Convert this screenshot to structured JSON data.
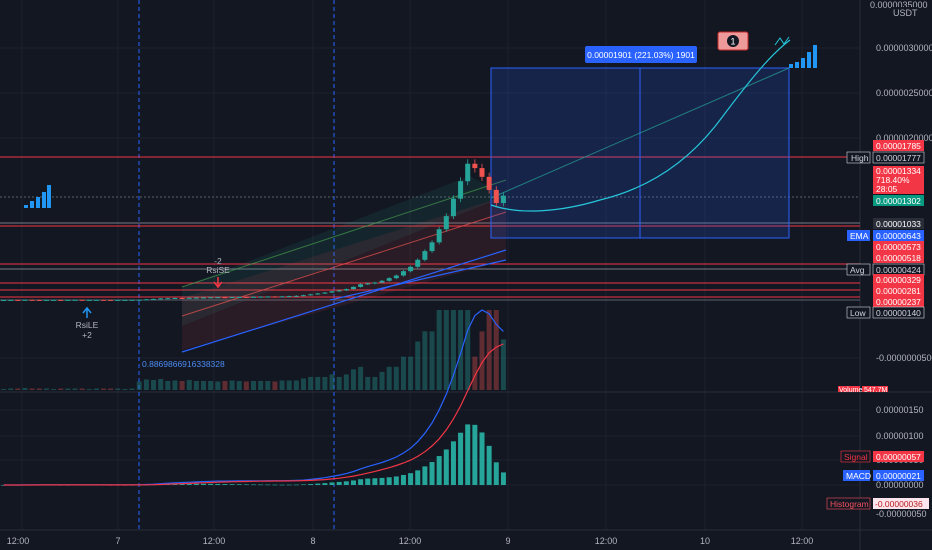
{
  "chart_data": {
    "type": "candlestick",
    "symbol_unit": "USDT",
    "x_ticks": [
      "12:00",
      "7",
      "12:00",
      "8",
      "12:00",
      "9",
      "12:00",
      "10",
      "12:00"
    ],
    "price_ticks": [
      "0.0000035000",
      "0.0000030000",
      "0.0000025000",
      "0.0000020000",
      "-0.0000000500"
    ],
    "price_range": [
      -5e-07,
      3.5e-06
    ],
    "candles_close": [
      1.4e-06,
      1.41e-06,
      1.4e-06,
      1.42e-06,
      1.41e-06,
      1.4e-06,
      1.41e-06,
      1.41e-06,
      1.4e-06,
      1.41e-06,
      1.42e-06,
      1.41e-06,
      1.41e-06,
      1.42e-06,
      1.41e-06,
      1.4e-06,
      1.41e-06,
      1.41e-06,
      1.42e-06,
      1.43e-06,
      1.48e-06,
      1.52e-06,
      1.58e-06,
      1.6e-06,
      1.63e-06,
      1.61e-06,
      1.65e-06,
      1.67e-06,
      1.69e-06,
      1.71e-06,
      1.72e-06,
      1.7e-06,
      1.73e-06,
      1.75e-06,
      1.74e-06,
      1.76e-06,
      1.78e-06,
      1.8e-06,
      1.79e-06,
      1.82e-06,
      1.85e-06,
      1.88e-06,
      1.95e-06,
      2.05e-06,
      2.15e-06,
      2.25e-06,
      2.4e-06,
      2.5e-06,
      2.65e-06,
      2.9e-06,
      3.2e-06,
      3.3e-06,
      3.4e-06,
      3.6e-06,
      3.9e-06,
      4.2e-06,
      4.7e-06,
      5.2e-06,
      6e-06,
      7e-06,
      8e-06,
      9.5e-06,
      1.1e-05,
      1.3e-05,
      1.5e-05,
      1.7e-05,
      1.65e-05,
      1.55e-05,
      1.4e-05,
      1.25e-05,
      1.334e-05
    ],
    "levels": [
      {
        "label": "",
        "value": "0.00001785",
        "color": "#f23645"
      },
      {
        "label": "High",
        "value": "0.00001777",
        "color": "#131722"
      },
      {
        "label": "",
        "value": "0.00001334",
        "color": "#f23645"
      },
      {
        "label": "",
        "value": "718.40%",
        "color": "#f23645"
      },
      {
        "label": "",
        "value": "28:05",
        "color": "#f23645"
      },
      {
        "label": "",
        "value": "0.00001302",
        "color": "#089981"
      },
      {
        "label": "",
        "value": "0.00001033",
        "color": "#2a2e39"
      },
      {
        "label": "EMA",
        "value": "0.00000643",
        "color": "#2962ff"
      },
      {
        "label": "",
        "value": "0.00000573",
        "color": "#f23645"
      },
      {
        "label": "",
        "value": "0.00000518",
        "color": "#f23645"
      },
      {
        "label": "Avg",
        "value": "0.00000424",
        "color": "#2a2e39"
      },
      {
        "label": "",
        "value": "0.00000329",
        "color": "#f23645"
      },
      {
        "label": "",
        "value": "0.00000281",
        "color": "#f23645"
      },
      {
        "label": "",
        "value": "0.00000237",
        "color": "#f23645"
      },
      {
        "label": "Low",
        "value": "0.00000140",
        "color": "#2a2e39"
      }
    ],
    "volume_label": "Volume",
    "volume_value": "547.7M",
    "measure_label": "0.00001901 (221.03%) 1901",
    "fib_label": "0.8869866916338328",
    "signals": [
      {
        "text": "-2",
        "text2": "RsiSE"
      },
      {
        "text": "RsiLE",
        "text2": "+2"
      }
    ],
    "macd_ticks": [
      "0.00000150",
      "0.00000100",
      "0.00000050",
      "0.00000000",
      "-0.00000050"
    ],
    "macd_labels": [
      {
        "label": "Signal",
        "value": "0.00000057",
        "color": "#f23645"
      },
      {
        "label": "MACD",
        "value": "0.00000021",
        "color": "#2962ff"
      },
      {
        "label": "Histogram",
        "value": "-0.00000036",
        "color": "#f7525f"
      }
    ],
    "colors": {
      "up": "#26a69a",
      "down": "#ef5350",
      "bg": "#131722",
      "grid": "#1e222d",
      "accent": "#2962ff"
    }
  }
}
